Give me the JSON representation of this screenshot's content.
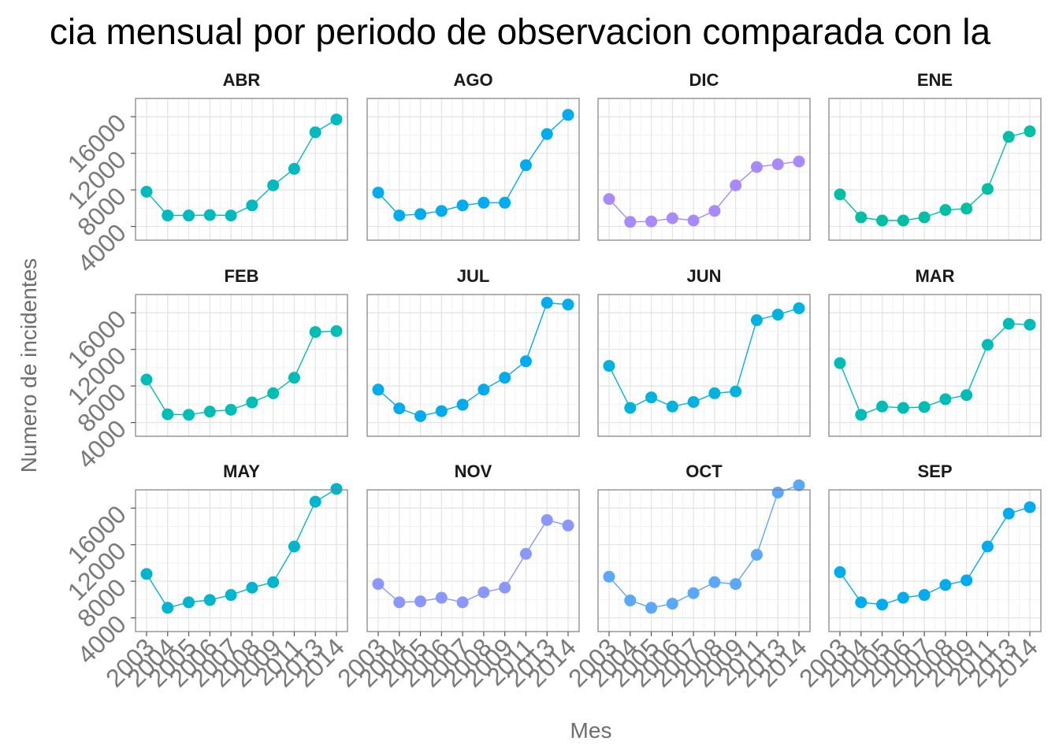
{
  "chart_data": {
    "type": "line",
    "title": "cia mensual por periodo de observacion comparada con la",
    "xlabel": "Mes",
    "ylabel": "Numero de incidentes",
    "x": [
      "2003",
      "2004",
      "2005",
      "2006",
      "2007",
      "2008",
      "2009",
      "2011",
      "2013",
      "2014"
    ],
    "y_ticks": [
      "4000",
      "8000",
      "12000",
      "16000"
    ],
    "ylim": [
      2500,
      18000
    ],
    "grid": true,
    "legend": "none",
    "panels": [
      {
        "name": "ABR",
        "color": "#00BAC0",
        "values": [
          7800,
          5200,
          5200,
          5250,
          5200,
          6300,
          8500,
          10300,
          14300,
          15700
        ]
      },
      {
        "name": "AGO",
        "color": "#00ACEF",
        "values": [
          7700,
          5200,
          5350,
          5700,
          6300,
          6600,
          6600,
          10700,
          14100,
          16200
        ]
      },
      {
        "name": "DIC",
        "color": "#A88AFE",
        "values": [
          7000,
          4500,
          4550,
          4900,
          4650,
          5700,
          8500,
          10500,
          10800,
          11100
        ]
      },
      {
        "name": "ENE",
        "color": "#00BFA5",
        "values": [
          7500,
          5000,
          4650,
          4650,
          5000,
          5800,
          5950,
          8100,
          13800,
          14400
        ]
      },
      {
        "name": "FEB",
        "color": "#00BDB5",
        "values": [
          8700,
          4900,
          4850,
          5200,
          5400,
          6200,
          7200,
          8900,
          13900,
          14000
        ]
      },
      {
        "name": "JUL",
        "color": "#00ACEF",
        "values": [
          7600,
          5550,
          4700,
          5250,
          5950,
          7600,
          8900,
          10700,
          17100,
          16900
        ]
      },
      {
        "name": "JUN",
        "color": "#00B2DE",
        "values": [
          10200,
          5600,
          6750,
          5750,
          6250,
          7200,
          7400,
          15200,
          15800,
          16500
        ]
      },
      {
        "name": "MAR",
        "color": "#00BCB7",
        "values": [
          10500,
          4850,
          5750,
          5600,
          5700,
          6550,
          7000,
          12500,
          14800,
          14700
        ]
      },
      {
        "name": "MAY",
        "color": "#00B5CD",
        "values": [
          8800,
          5100,
          5700,
          5950,
          6500,
          7300,
          7900,
          11800,
          16700,
          18100
        ]
      },
      {
        "name": "NOV",
        "color": "#8A97FF",
        "values": [
          7700,
          5700,
          5800,
          6200,
          5700,
          6800,
          7300,
          11000,
          14700,
          14100
        ]
      },
      {
        "name": "OCT",
        "color": "#5BA7F9",
        "values": [
          8500,
          5900,
          5100,
          5550,
          6700,
          7900,
          7700,
          10900,
          17700,
          18500
        ]
      },
      {
        "name": "SEP",
        "color": "#00ACEE",
        "values": [
          9000,
          5700,
          5450,
          6200,
          6500,
          7600,
          8100,
          11800,
          15400,
          16100
        ]
      }
    ]
  }
}
